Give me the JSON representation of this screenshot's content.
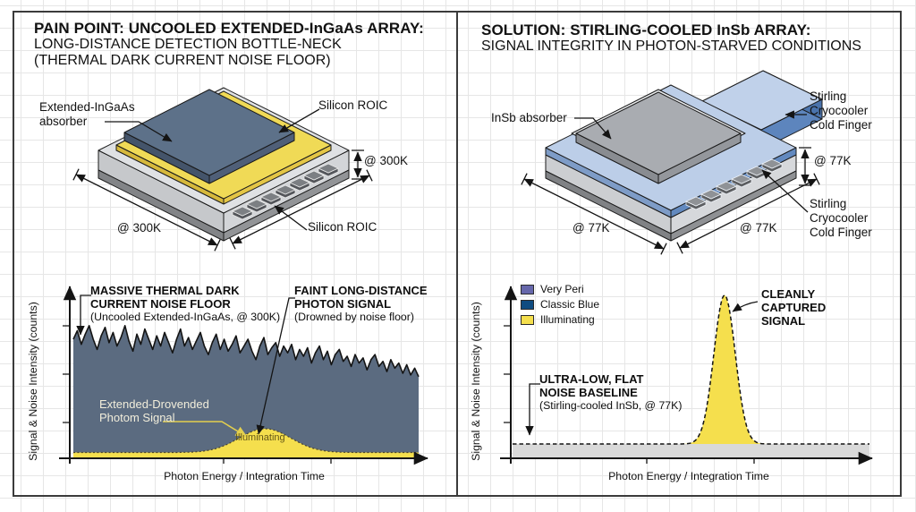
{
  "panels": {
    "left": {
      "title": {
        "line1": "PAIN POINT: UNCOOLED EXTENDED-InGaAs ARRAY:",
        "line2": "LONG-DISTANCE DETECTION BOTTLE-NECK",
        "line3": "(THERMAL DARK CURRENT NOISE FLOOR)"
      },
      "chip": {
        "absorber_label_line1": "Extended-InGaAs",
        "absorber_label_line2": "absorber",
        "roic_label_top": "Silicon ROIC",
        "roic_label_bottom": "Silicon ROIC",
        "dim_height": "@ 300K",
        "dim_width": "@ 300K"
      },
      "chart": {
        "ylabel": "Signal & Noise Intensity (counts)",
        "xlabel": "Photon Energy / Integration Time",
        "note_noise": {
          "lines": [
            "MASSIVE THERMAL DARK",
            "CURRENT NOISE FLOOR"
          ],
          "sub": "(Uncooled Extended-InGaAs, @ 300K)"
        },
        "note_signal": {
          "lines": [
            "FAINT LONG-DISTANCE",
            "PHOTON SIGNAL"
          ],
          "sub": "(Drowned by noise floor)"
        },
        "note_buried": {
          "lines": [
            "Extended-Drovended",
            "Photom Signal"
          ]
        },
        "bump_label": "Illuminating"
      }
    },
    "right": {
      "title": {
        "line1": "SOLUTION: STIRLING-COOLED InSb ARRAY:",
        "line2": "SIGNAL INTEGRITY IN PHOTON-STARVED CONDITIONS"
      },
      "chip": {
        "absorber_label": "InSb absorber",
        "coldfinger_top": {
          "lines": [
            "Stirling",
            "Cryocooler",
            "Cold Finger"
          ]
        },
        "coldfinger_bottom": {
          "lines": [
            "Stirling",
            "Cryocooler",
            "Cold Finger"
          ]
        },
        "dim_height": "@ 77K",
        "dim_width_left": "@ 77K",
        "dim_width_right": "@ 77K"
      },
      "chart": {
        "ylabel": "Signal & Noise Intensity (counts)",
        "xlabel": "Photon Energy / Integration Time",
        "legend": [
          {
            "label": "Very Peri",
            "color": "#6667AB"
          },
          {
            "label": "Classic Blue",
            "color": "#0F4C81"
          },
          {
            "label": "Illuminating",
            "color": "#F5DF4D"
          }
        ],
        "note_signal": {
          "lines": [
            "CLEANLY",
            "CAPTURED",
            "SIGNAL"
          ]
        },
        "note_baseline": {
          "lines": [
            "ULTRA-LOW, FLAT",
            "NOISE BASELINE"
          ],
          "sub": "(Stirling-cooled InSb, @ 77K)"
        }
      }
    }
  },
  "chart_data": [
    {
      "type": "area",
      "xlabel": "Photon Energy / Integration Time",
      "ylabel": "Signal & Noise Intensity (counts)",
      "x_range": [
        0,
        1
      ],
      "y_range": [
        0,
        100
      ],
      "grid": false,
      "series": [
        {
          "name": "Massive thermal dark current noise floor",
          "color": "#5B6B80",
          "values": [
            70,
            75,
            67,
            73,
            78,
            70,
            64,
            72,
            77,
            68,
            74,
            66,
            71,
            78,
            69,
            63,
            73,
            67,
            76,
            70,
            64,
            72,
            66,
            74,
            68,
            62,
            70,
            76,
            66,
            71,
            64,
            69,
            74,
            66,
            61,
            68,
            73,
            64,
            70,
            63,
            67,
            72,
            62,
            66,
            70,
            63,
            58,
            66,
            71,
            61,
            65,
            68,
            60,
            66,
            62,
            67,
            58,
            64,
            60,
            65,
            56,
            62,
            66,
            58,
            63,
            55,
            61,
            64,
            57,
            60,
            54,
            61,
            56,
            59,
            52,
            58,
            61,
            54,
            57,
            51,
            58,
            53,
            56,
            50,
            55,
            49,
            53,
            48
          ]
        },
        {
          "name": "Faint long-distance photon signal",
          "color": "#F5DF4D",
          "baseline": 3.4,
          "peak_center": 0.555,
          "peak_sigma": 0.075,
          "peak_height": 14
        }
      ]
    },
    {
      "type": "area",
      "xlabel": "Photon Energy / Integration Time",
      "ylabel": "Signal & Noise Intensity (counts)",
      "x_range": [
        0,
        1
      ],
      "y_range": [
        0,
        100
      ],
      "grid": false,
      "legend_position": "top-left",
      "series": [
        {
          "name": "Ultra-low flat noise baseline",
          "color": "#D9D9D9",
          "baseline": 8.4
        },
        {
          "name": "Cleanly captured signal",
          "color": "#F5DF4D",
          "baseline": 8.4,
          "peak_center": 0.594,
          "peak_sigma": 0.03,
          "peak_height": 87.5
        }
      ]
    }
  ]
}
